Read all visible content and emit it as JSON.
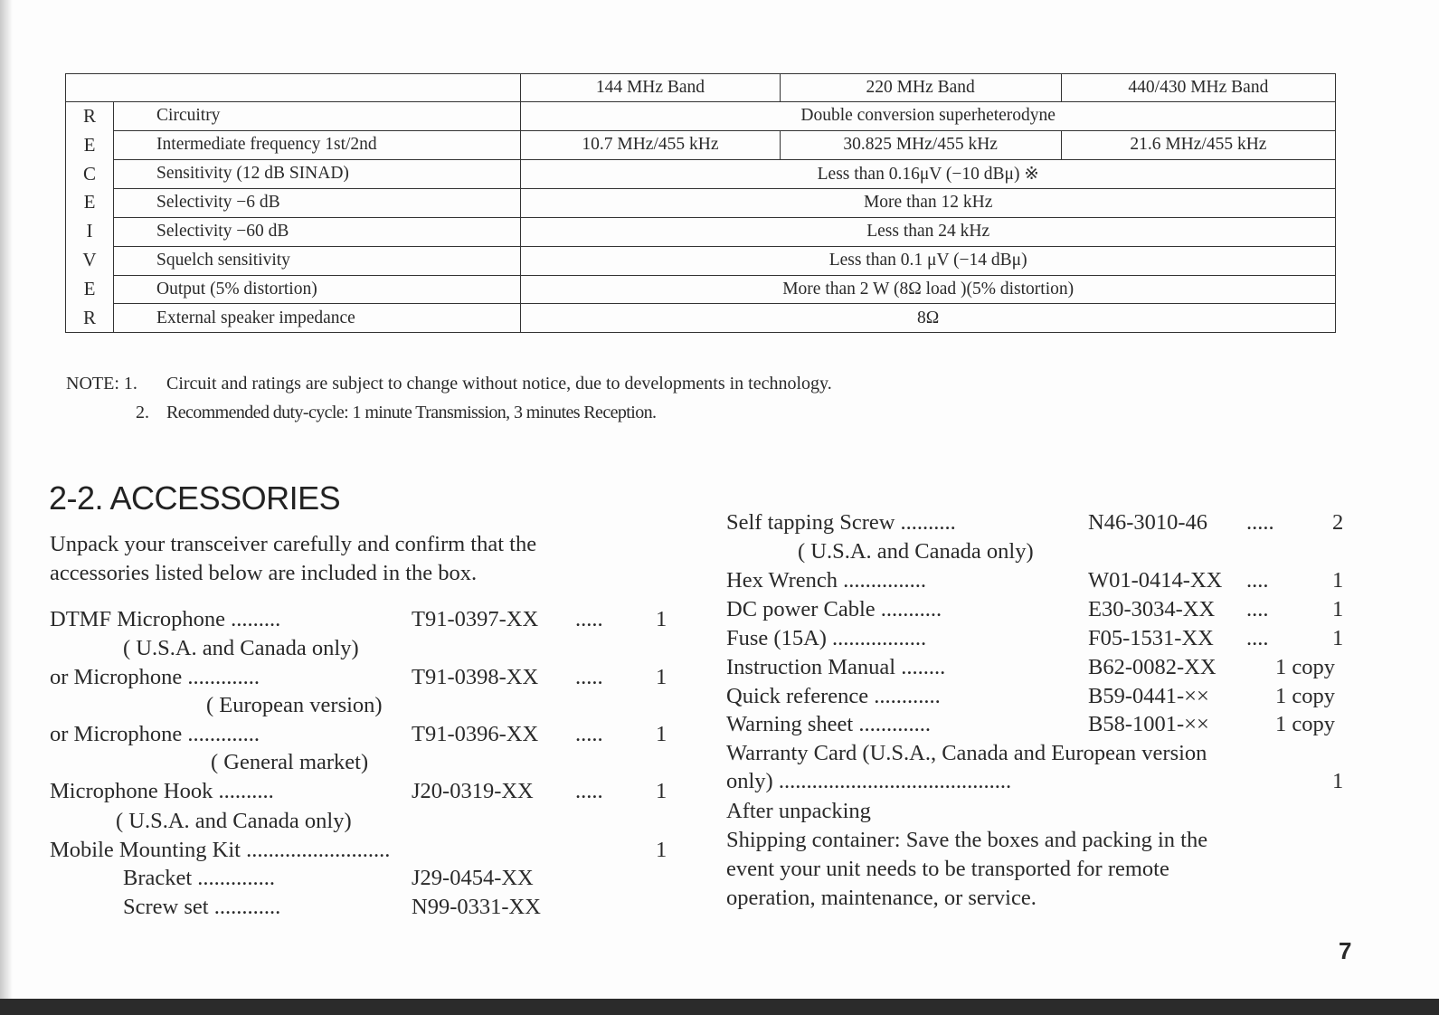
{
  "spec_table": {
    "section_label": [
      "R",
      "E",
      "C",
      "E",
      "I",
      "V",
      "E",
      "R"
    ],
    "headers": [
      "144 MHz Band",
      "220 MHz Band",
      "440/430 MHz Band"
    ],
    "rows": [
      {
        "label": "Circuitry",
        "value": "Double conversion superheterodyne"
      },
      {
        "label": "Intermediate frequency 1st/2nd",
        "values": [
          "10.7 MHz/455 kHz",
          "30.825 MHz/455 kHz",
          "21.6 MHz/455 kHz"
        ]
      },
      {
        "label": "Sensitivity (12 dB SINAD)",
        "value": "Less than 0.16μV (−10 dBμ) ※"
      },
      {
        "label": "Selectivity   −6 dB",
        "value": "More than 12 kHz"
      },
      {
        "label": "Selectivity   −60 dB",
        "value": "Less than 24 kHz"
      },
      {
        "label": "Squelch  sensitivity",
        "value": "Less than 0.1 μV (−14 dBμ)"
      },
      {
        "label": "Output (5% distortion)",
        "value": "More than 2 W (8Ω load )(5% distortion)"
      },
      {
        "label": "External  speaker  impedance",
        "value": "8Ω"
      }
    ]
  },
  "notes": {
    "prefix": "NOTE: 1.",
    "note1": "Circuit and ratings are subject to change without notice, due to developments in technology.",
    "num2": "2.",
    "note2": "Recommended duty-cycle: 1 minute Transmission, 3 minutes Reception."
  },
  "accessories": {
    "title": "2-2. ACCESSORIES",
    "intro": [
      "Unpack your transceiver carefully and confirm that the",
      "accessories listed below are included in the box."
    ],
    "left": [
      {
        "name": "DTMF Microphone .........",
        "part": "T91-0397-XX",
        "dots": ".....",
        "qty": "1"
      },
      {
        "name": "( U.S.A. and Canada only)"
      },
      {
        "name": "or   Microphone .............",
        "part": "T91-0398-XX",
        "dots": ".....",
        "qty": "1"
      },
      {
        "name": "( European version)"
      },
      {
        "name": "or   Microphone .............",
        "part": "T91-0396-XX",
        "dots": ".....",
        "qty": "1"
      },
      {
        "name": "( General market)"
      },
      {
        "name": "Microphone  Hook ..........",
        "part": "J20-0319-XX",
        "dots": ".....",
        "qty": "1"
      },
      {
        "name": "( U.S.A. and Canada only)"
      },
      {
        "name": "Mobile  Mounting  Kit ..........................",
        "qty": "1"
      },
      {
        "name": "Bracket ..............",
        "part": "J29-0454-XX"
      },
      {
        "name": "Screw set  ............",
        "part": "N99-0331-XX"
      }
    ],
    "right": [
      {
        "name": "Self tapping Screw ..........",
        "part": "N46-3010-46",
        "dots": ".....",
        "qty": "2"
      },
      {
        "name": "( U.S.A. and Canada only)"
      },
      {
        "name": "Hex Wrench  ...............",
        "part": "W01-0414-XX",
        "dots": "....",
        "qty": "1"
      },
      {
        "name": "DC  power  Cable  ...........",
        "part": "E30-3034-XX",
        "dots": "....",
        "qty": "1"
      },
      {
        "name": "Fuse (15A)  .................",
        "part": "F05-1531-XX",
        "dots": "....",
        "qty": "1"
      },
      {
        "name": "Instruction  Manual  ........",
        "part": "B62-0082-XX",
        "qty": "1 copy"
      },
      {
        "name": "Quick reference  ............",
        "part": "B59-0441-××",
        "qty": "1 copy"
      },
      {
        "name": "Warning sheet  .............",
        "part": "B58-1001-××",
        "qty": "1 copy"
      },
      {
        "name": "Warranty Card (U.S.A., Canada and European version"
      },
      {
        "name": "only)  ..........................................",
        "qty": "1"
      },
      {
        "name": "After unpacking"
      },
      {
        "name": "Shipping container: Save the boxes and packing in the"
      },
      {
        "name": "event  your  unit  needs  to  be  transported  for  remote"
      },
      {
        "name": "operation, maintenance, or service."
      }
    ]
  },
  "page_number": "7"
}
